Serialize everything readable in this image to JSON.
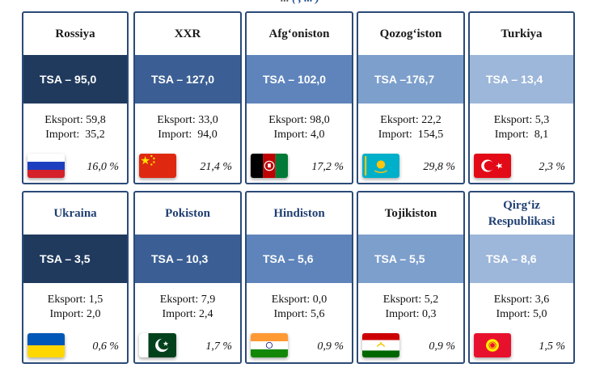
{
  "header": {
    "prefix": "...",
    "blue": "( , ... )",
    "suffix": ""
  },
  "colors": {
    "band_dark": "#203a5e",
    "band_mid_dark": "#3b5f94",
    "band_mid": "#5e84bb",
    "band_light": "#7d9fcc",
    "band_lighter": "#9db7da",
    "title_dark": "#1a1a1a",
    "title_blue": "#1f3f72"
  },
  "cards": [
    {
      "name": "Rossiya",
      "tsa": "TSA – 95,0",
      "eksport": "Eksport: 59,8",
      "import": "Import:  35,2",
      "pct": "16,0 %",
      "flag": "russia-flag"
    },
    {
      "name": "XXR",
      "tsa": "TSA – 127,0",
      "eksport": "Eksport: 33,0",
      "import": "Import:  94,0",
      "pct": "21,4 %",
      "flag": "china-flag"
    },
    {
      "name": "Afg‘oniston",
      "tsa": "TSA – 102,0",
      "eksport": "Eksport: 98,0",
      "import": "Import: 4,0",
      "pct": "17,2 %",
      "flag": "afghanistan-flag"
    },
    {
      "name": "Qozog‘iston",
      "tsa": "TSA –176,7",
      "eksport": "Eksport: 22,2",
      "import": "Import:  154,5",
      "pct": "29,8 %",
      "flag": "kazakhstan-flag"
    },
    {
      "name": "Turkiya",
      "tsa": "TSA – 13,4",
      "eksport": "Eksport: 5,3",
      "import": "Import:  8,1",
      "pct": "2,3 %",
      "flag": "turkey-flag"
    },
    {
      "name": "Ukraina",
      "tsa": "TSA – 3,5",
      "eksport": "Eksport: 1,5",
      "import": "Import: 2,0",
      "pct": "0,6 %",
      "flag": "ukraine-flag"
    },
    {
      "name": "Pokiston",
      "tsa": "TSA – 10,3",
      "eksport": "Eksport: 7,9",
      "import": "Import: 2,4",
      "pct": "1,7 %",
      "flag": "pakistan-flag"
    },
    {
      "name": "Hindiston",
      "tsa": "TSA – 5,6",
      "eksport": "Eksport: 0,0",
      "import": "Import: 5,6",
      "pct": "0,9 %",
      "flag": "india-flag"
    },
    {
      "name": "Tojikiston",
      "tsa": "TSA – 5,5",
      "eksport": "Eksport: 5,2",
      "import": "Import: 0,3",
      "pct": "0,9 %",
      "flag": "tajikistan-flag"
    },
    {
      "name": "Qirg‘iz Respublikasi",
      "tsa": "TSA – 8,6",
      "eksport": "Eksport: 3,6",
      "import": "Import: 5,0",
      "pct": "1,5 %",
      "flag": "kyrgyzstan-flag"
    }
  ]
}
